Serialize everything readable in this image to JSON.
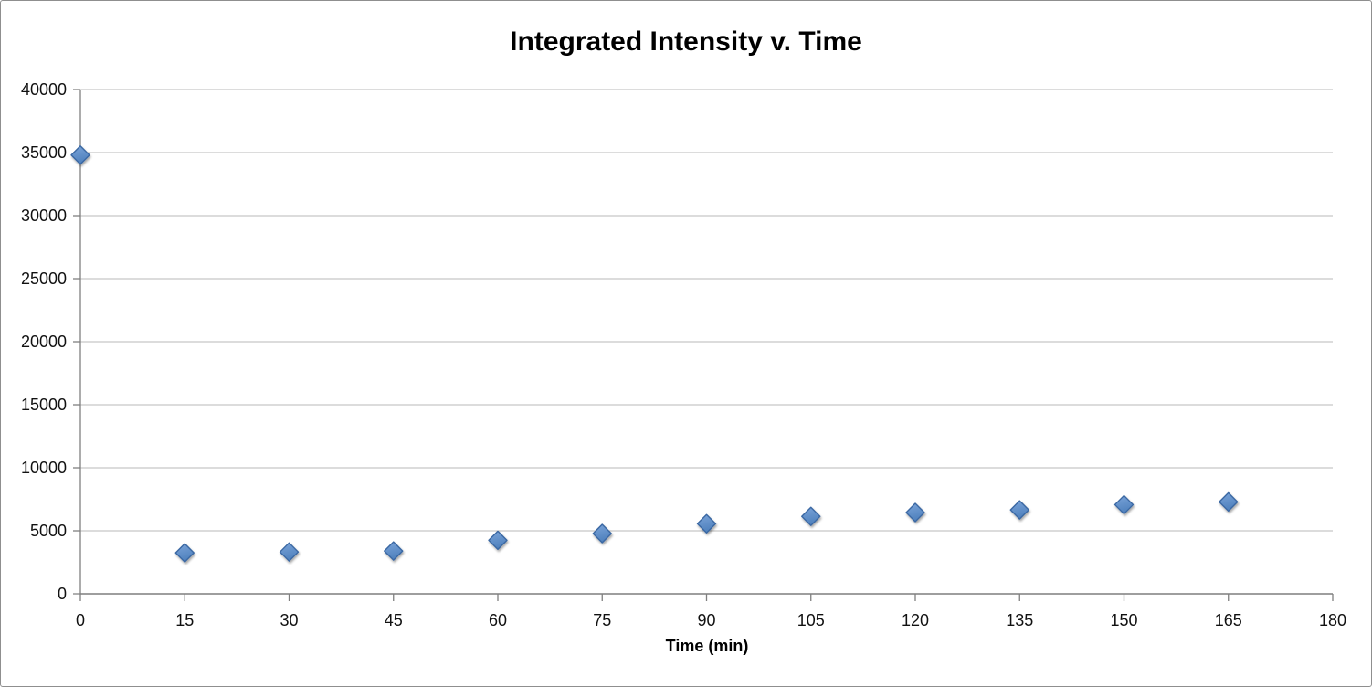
{
  "chart": {
    "title": "Integrated Intensity v. Time",
    "x_axis_title": "Time (min)"
  },
  "chart_data": {
    "type": "scatter",
    "title": "Integrated Intensity v. Time",
    "xlabel": "Time (min)",
    "ylabel": "",
    "x": [
      0,
      15,
      30,
      45,
      60,
      75,
      90,
      105,
      120,
      135,
      150,
      165
    ],
    "y": [
      34800,
      3250,
      3320,
      3400,
      4250,
      4780,
      5560,
      6140,
      6450,
      6660,
      7070,
      7290
    ],
    "xlim": [
      0,
      180
    ],
    "ylim": [
      0,
      40000
    ],
    "x_ticks": [
      0,
      15,
      30,
      45,
      60,
      75,
      90,
      105,
      120,
      135,
      150,
      165,
      180
    ],
    "y_ticks": [
      0,
      5000,
      10000,
      15000,
      20000,
      25000,
      30000,
      35000,
      40000
    ],
    "grid": "horizontal",
    "legend": "none",
    "marker": {
      "shape": "diamond",
      "size": 20,
      "fill": "#4f81bd",
      "fill_light": "#7ba4d9",
      "stroke": "#3a67a3"
    },
    "colors": {
      "background": "#ffffff",
      "frame_border": "#8f8f8f",
      "gridline": "#b8b8b8",
      "axis": "#7f7f7f",
      "tick_text": "#111111",
      "title_text": "#000000"
    }
  }
}
